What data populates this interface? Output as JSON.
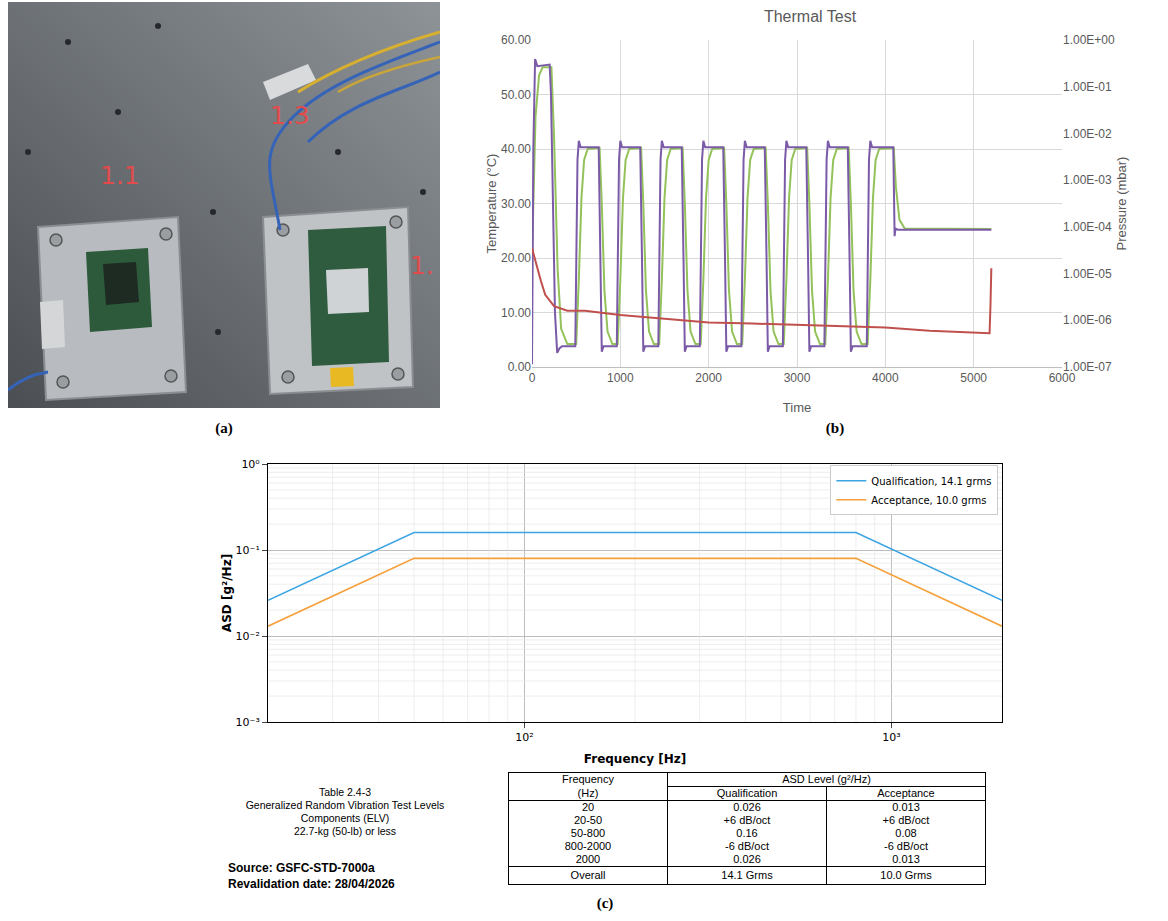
{
  "panel_labels": [
    "(a)",
    "(b)",
    "(c)"
  ],
  "photo": {
    "labels": [
      "1.1",
      "1.3",
      "1."
    ]
  },
  "chart_data": [
    {
      "type": "line",
      "title": "Thermal Test",
      "x_label": "Time",
      "y_label": "Temperature (°C)",
      "y2_label": "Pressure (mbar)",
      "xlim": [
        0,
        6000
      ],
      "xticks": [
        0,
        1000,
        2000,
        3000,
        4000,
        5000,
        6000
      ],
      "ylim": [
        0,
        60
      ],
      "yticks": [
        {
          "value": 0,
          "label": "0.00"
        },
        {
          "value": 10,
          "label": "10.00"
        },
        {
          "value": 20,
          "label": "20.00"
        },
        {
          "value": 30,
          "label": "30.00"
        },
        {
          "value": 40,
          "label": "40.00"
        },
        {
          "value": 50,
          "label": "50.00"
        },
        {
          "value": 60,
          "label": "60.00"
        }
      ],
      "y2lim": [
        1e-07,
        1
      ],
      "y2ticks": [
        {
          "value": 1e-07,
          "label": "1.00E-07"
        },
        {
          "value": 1e-06,
          "label": "1.00E-06"
        },
        {
          "value": 1e-05,
          "label": "1.00E-05"
        },
        {
          "value": 0.0001,
          "label": "1.00E-04"
        },
        {
          "value": 0.001,
          "label": "1.00E-03"
        },
        {
          "value": 0.01,
          "label": "1.00E-02"
        },
        {
          "value": 0.1,
          "label": "1.00E-01"
        },
        {
          "value": 1,
          "label": "1.00E+00"
        }
      ],
      "log": "y2",
      "grid": true,
      "series": [
        {
          "color": "#93c25a",
          "x": [
            0,
            40,
            80,
            120,
            220,
            250,
            290,
            330,
            400,
            500,
            530,
            560,
            590,
            630,
            765,
            790,
            820,
            855,
            910,
            970,
            1000,
            1030,
            1060,
            1100,
            1235,
            1260,
            1290,
            1325,
            1380,
            1440,
            1470,
            1500,
            1530,
            1570,
            1705,
            1730,
            1760,
            1795,
            1850,
            1910,
            1940,
            1970,
            2000,
            2040,
            2175,
            2200,
            2230,
            2265,
            2320,
            2380,
            2410,
            2440,
            2470,
            2510,
            2645,
            2670,
            2700,
            2735,
            2790,
            2850,
            2880,
            2910,
            2940,
            2980,
            3115,
            3140,
            3170,
            3205,
            3260,
            3320,
            3350,
            3380,
            3410,
            3450,
            3585,
            3610,
            3640,
            3675,
            3730,
            3800,
            3830,
            3860,
            3890,
            3930,
            4095,
            4120,
            4160,
            4220,
            5200
          ],
          "values": [
            20,
            46,
            53.5,
            55,
            55,
            42,
            18,
            7,
            4.2,
            4.2,
            16,
            31,
            38,
            40,
            40.2,
            30,
            14,
            6.5,
            4.2,
            4.2,
            16,
            31,
            38,
            40,
            40.2,
            30,
            14,
            6.5,
            4.2,
            4.2,
            16,
            31,
            38,
            40,
            40.2,
            30,
            14,
            6.5,
            4.2,
            4.2,
            16,
            31,
            38,
            40,
            40.2,
            30,
            14,
            6.5,
            4.2,
            4.2,
            16,
            31,
            38,
            40,
            40.2,
            30,
            14,
            6.5,
            4.2,
            4.2,
            16,
            31,
            38,
            40,
            40.2,
            30,
            14,
            6.5,
            4.2,
            4.2,
            16,
            31,
            38,
            40,
            40.2,
            30,
            14,
            6.5,
            4.2,
            4.2,
            16,
            31,
            38,
            40,
            40.2,
            33,
            27,
            25.4,
            25.3
          ]
        },
        {
          "color": "#7b5ba8",
          "x": [
            0,
            15,
            35,
            60,
            200,
            215,
            260,
            285,
            310,
            340,
            490,
            515,
            530,
            550,
            755,
            775,
            790,
            810,
            960,
            985,
            1000,
            1020,
            1225,
            1245,
            1260,
            1280,
            1430,
            1455,
            1470,
            1490,
            1695,
            1715,
            1730,
            1750,
            1900,
            1925,
            1940,
            1960,
            2165,
            2185,
            2200,
            2220,
            2370,
            2395,
            2410,
            2430,
            2635,
            2655,
            2670,
            2690,
            2840,
            2865,
            2880,
            2900,
            3105,
            3125,
            3140,
            3160,
            3310,
            3335,
            3350,
            3370,
            3575,
            3595,
            3610,
            3630,
            3790,
            3815,
            3830,
            3850,
            4090,
            4105,
            4115,
            4140,
            5200
          ],
          "values": [
            0.5,
            40,
            56.5,
            55.2,
            55.5,
            50,
            10,
            2.6,
            3.4,
            3.8,
            3.8,
            38,
            41.5,
            40.3,
            40.3,
            20,
            2.8,
            3.8,
            3.8,
            38,
            41.5,
            40.3,
            40.3,
            20,
            2.8,
            3.8,
            3.8,
            38,
            41.5,
            40.3,
            40.3,
            20,
            2.8,
            3.8,
            3.8,
            38,
            41.5,
            40.3,
            40.3,
            20,
            2.8,
            3.8,
            3.8,
            38,
            41.5,
            40.3,
            40.3,
            20,
            2.8,
            3.8,
            3.8,
            38,
            41.5,
            40.3,
            40.3,
            20,
            2.8,
            3.8,
            3.8,
            38,
            41.5,
            40.3,
            40.3,
            20,
            2.8,
            3.8,
            3.8,
            38,
            41.5,
            40.3,
            40.3,
            24,
            25.4,
            25.2,
            25.2
          ]
        },
        {
          "color": "#c0504d",
          "axis": "y2",
          "x": [
            0,
            50,
            100,
            150,
            250,
            400,
            600,
            1000,
            1500,
            2000,
            2500,
            3000,
            3500,
            4000,
            4500,
            5000,
            5180,
            5190,
            5200
          ],
          "values": [
            3.5e-05,
            1.5e-05,
            7e-06,
            3.5e-06,
            2e-06,
            1.6e-06,
            1.6e-06,
            1.3e-06,
            1.1e-06,
            9e-07,
            8.5e-07,
            8e-07,
            7.5e-07,
            7e-07,
            6e-07,
            5.5e-07,
            5.3e-07,
            2e-06,
            1.3e-05
          ]
        }
      ]
    },
    {
      "type": "line",
      "x_label": "Frequency [Hz]",
      "y_label": "ASD [g²/Hz]",
      "log": true,
      "grid": true,
      "legend": "top right",
      "xlim": [
        20,
        2000
      ],
      "xticks": [
        {
          "value": 100,
          "label": "10²"
        },
        {
          "value": 1000,
          "label": "10³"
        }
      ],
      "ylim": [
        0.001,
        1
      ],
      "yticks": [
        {
          "value": 0.001,
          "label": "10⁻³"
        },
        {
          "value": 0.01,
          "label": "10⁻²"
        },
        {
          "value": 0.1,
          "label": "10⁻¹"
        },
        {
          "value": 1,
          "label": "10⁰"
        }
      ],
      "x": [
        20,
        50,
        800,
        2000
      ],
      "series": [
        {
          "name": "Qualification, 14.1 grms",
          "color": "#3ba4e3",
          "values": [
            0.026,
            0.16,
            0.16,
            0.026
          ]
        },
        {
          "name": "Acceptance, 10.0 grms",
          "color": "#f5a03a",
          "values": [
            0.013,
            0.08,
            0.08,
            0.013
          ]
        }
      ]
    }
  ],
  "table_caption": {
    "lines": [
      "Table 2.4-3",
      "Generalized Random Vibration Test Levels",
      "Components (ELV)",
      "22.7-kg (50-lb) or less"
    ],
    "source": "Source: GSFC-STD-7000a",
    "revalidation": "Revalidation date: 28/04/2026"
  },
  "table": {
    "header": {
      "frequency": [
        "Frequency",
        "(Hz)"
      ],
      "asd": "ASD Level (g²/Hz)",
      "columns": [
        "Qualification",
        "Acceptance"
      ]
    },
    "rows": [
      [
        "20",
        "0.026",
        "0.013"
      ],
      [
        "20-50",
        "+6 dB/oct",
        "+6 dB/oct"
      ],
      [
        "50-800",
        "0.16",
        "0.08"
      ],
      [
        "800-2000",
        "-6 dB/oct",
        "-6 dB/oct"
      ],
      [
        "2000",
        "0.026",
        "0.013"
      ]
    ],
    "overall": [
      "Overall",
      "14.1 Grms",
      "10.0 Grms"
    ]
  }
}
